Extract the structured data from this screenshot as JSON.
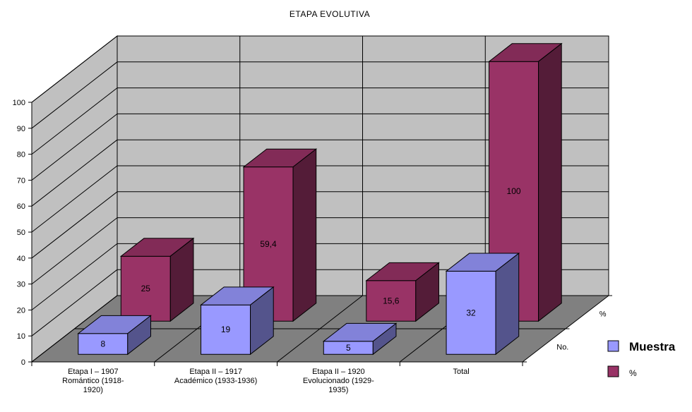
{
  "chart_data": {
    "type": "bar",
    "title": "ETAPA EVOLUTIVA",
    "categories": [
      [
        "Etapa I  – 1907",
        "Romántico  (1918-",
        "1920)"
      ],
      [
        "Etapa II  – 1917",
        "Académico  (1933-1936)"
      ],
      [
        "Etapa II – 1920",
        "Evolucionado (1929-",
        "1935)"
      ],
      [
        "Total"
      ]
    ],
    "series": [
      {
        "name": "Muestra",
        "depth_label": "No.",
        "color": "#9999ff",
        "values": [
          8,
          19,
          5,
          32
        ]
      },
      {
        "name": "%",
        "depth_label": "%",
        "color": "#993366",
        "values": [
          25,
          59.4,
          15.6,
          100
        ]
      }
    ],
    "data_labels": [
      [
        "8",
        "19",
        "5",
        "32"
      ],
      [
        "25",
        "59,4",
        "15,6",
        "100"
      ]
    ],
    "y_ticks": [
      0,
      10,
      20,
      30,
      40,
      50,
      60,
      70,
      80,
      90,
      100
    ],
    "ylim": [
      0,
      100
    ],
    "grid": true,
    "legend_position": "right",
    "wall_color": "#c0c0c0",
    "floor_color": "#808080"
  }
}
